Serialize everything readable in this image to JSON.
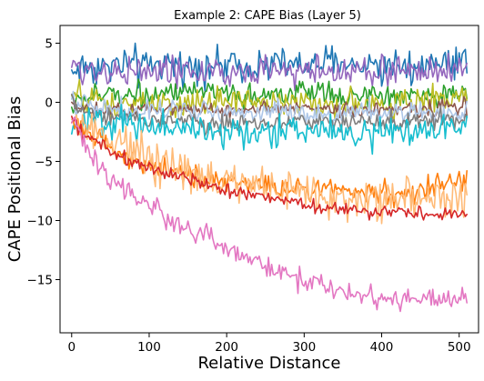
{
  "chart_data": {
    "type": "line",
    "title": "Example 2: CAPE Bias (Layer 5)",
    "xlabel": "Relative Distance",
    "ylabel": "CAPE Positional Bias",
    "xlim": [
      -15,
      525
    ],
    "ylim": [
      -19.5,
      6.5
    ],
    "xticks": [
      0,
      100,
      200,
      300,
      400,
      500
    ],
    "yticks": [
      5,
      0,
      -5,
      -10,
      -15
    ],
    "xtick_labels": [
      "0",
      "100",
      "200",
      "300",
      "400",
      "500"
    ],
    "ytick_labels": [
      "5",
      "0",
      "−5",
      "−10",
      "−15"
    ],
    "grid": false,
    "legend": "none",
    "x": [
      0,
      511
    ],
    "series": [
      {
        "color": "#1f77b4",
        "x": [
          0,
          10,
          30,
          60,
          100,
          150,
          200,
          250,
          300,
          350,
          400,
          450,
          511
        ],
        "values": [
          2.5,
          3.0,
          3.0,
          3.2,
          3.0,
          3.2,
          3.1,
          3.3,
          3.0,
          3.3,
          3.1,
          3.2,
          3.5
        ],
        "noise": 0.9
      },
      {
        "color": "#9467bd",
        "x": [
          0,
          10,
          30,
          60,
          100,
          150,
          200,
          250,
          300,
          350,
          400,
          450,
          511
        ],
        "values": [
          2.8,
          3.0,
          2.8,
          2.7,
          2.6,
          2.6,
          2.5,
          2.6,
          2.7,
          2.6,
          2.6,
          2.7,
          2.9
        ],
        "noise": 0.8
      },
      {
        "color": "#2ca02c",
        "x": [
          0,
          10,
          30,
          60,
          100,
          150,
          200,
          250,
          300,
          350,
          400,
          450,
          511
        ],
        "values": [
          -0.5,
          0.2,
          0.5,
          0.8,
          0.8,
          0.7,
          0.6,
          0.7,
          0.8,
          0.6,
          0.5,
          0.6,
          0.8
        ],
        "noise": 0.6
      },
      {
        "color": "#bcbd22",
        "x": [
          0,
          10,
          30,
          60,
          100,
          150,
          200,
          250,
          300,
          350,
          400,
          450,
          511
        ],
        "values": [
          0.5,
          0.5,
          0.0,
          -0.3,
          -0.2,
          -0.2,
          0.0,
          0.1,
          0.0,
          0.0,
          -0.2,
          0.1,
          0.5
        ],
        "noise": 0.7
      },
      {
        "color": "#8c564b",
        "x": [
          0,
          10,
          30,
          60,
          100,
          150,
          200,
          250,
          300,
          350,
          400,
          450,
          511
        ],
        "values": [
          0.0,
          -0.5,
          -0.8,
          -0.8,
          -0.6,
          -0.5,
          -0.6,
          -0.6,
          -0.5,
          -0.6,
          -0.7,
          -0.6,
          -0.3
        ],
        "noise": 0.4
      },
      {
        "color": "#aec7e8",
        "x": [
          0,
          10,
          30,
          60,
          100,
          150,
          200,
          250,
          300,
          350,
          400,
          450,
          511
        ],
        "values": [
          0.3,
          -0.2,
          -0.5,
          -0.7,
          -0.8,
          -0.8,
          -0.9,
          -0.8,
          -0.8,
          -0.9,
          -0.9,
          -1.0,
          -0.8
        ],
        "noise": 0.6
      },
      {
        "color": "#7f7f7f",
        "x": [
          0,
          10,
          30,
          60,
          100,
          150,
          200,
          250,
          300,
          350,
          400,
          450,
          511
        ],
        "values": [
          0.0,
          -0.5,
          -1.0,
          -1.3,
          -1.5,
          -1.6,
          -1.7,
          -1.7,
          -1.6,
          -1.7,
          -1.8,
          -1.7,
          -1.5
        ],
        "noise": 0.5
      },
      {
        "color": "#17becf",
        "x": [
          0,
          10,
          30,
          60,
          100,
          150,
          200,
          250,
          300,
          350,
          400,
          450,
          511
        ],
        "values": [
          -2.5,
          -1.8,
          -1.5,
          -1.8,
          -2.0,
          -2.3,
          -2.5,
          -2.5,
          -2.4,
          -2.5,
          -2.6,
          -2.3,
          -1.8
        ],
        "noise": 0.8
      },
      {
        "color": "#ff7f0e",
        "x": [
          0,
          10,
          30,
          60,
          100,
          150,
          200,
          250,
          300,
          350,
          400,
          450,
          511
        ],
        "values": [
          -1.5,
          -2.0,
          -3.0,
          -4.5,
          -5.5,
          -6.2,
          -6.8,
          -7.0,
          -7.2,
          -7.4,
          -7.6,
          -7.5,
          -6.5
        ],
        "noise": 0.6
      },
      {
        "color": "#ffbb78",
        "x": [
          0,
          10,
          30,
          60,
          100,
          150,
          200,
          250,
          300,
          350,
          400,
          450,
          511
        ],
        "values": [
          -1.0,
          -1.8,
          -2.5,
          -3.5,
          -5.0,
          -6.0,
          -6.8,
          -7.4,
          -7.9,
          -8.1,
          -8.4,
          -8.2,
          -7.6
        ],
        "noise": 1.1
      },
      {
        "color": "#d62728",
        "x": [
          0,
          10,
          30,
          60,
          100,
          150,
          200,
          250,
          300,
          350,
          400,
          450,
          511
        ],
        "values": [
          -1.0,
          -2.5,
          -3.3,
          -4.5,
          -5.6,
          -6.6,
          -7.4,
          -8.1,
          -8.6,
          -9.0,
          -9.2,
          -9.4,
          -9.5
        ],
        "noise": 0.35
      },
      {
        "color": "#e377c2",
        "x": [
          0,
          10,
          20,
          40,
          70,
          100,
          150,
          200,
          250,
          300,
          350,
          400,
          450,
          511
        ],
        "values": [
          -1.5,
          -2.5,
          -4.0,
          -5.8,
          -7.5,
          -8.8,
          -10.8,
          -12.3,
          -14.0,
          -15.0,
          -16.0,
          -16.5,
          -17.0,
          -16.2
        ],
        "noise": 0.6
      }
    ]
  }
}
